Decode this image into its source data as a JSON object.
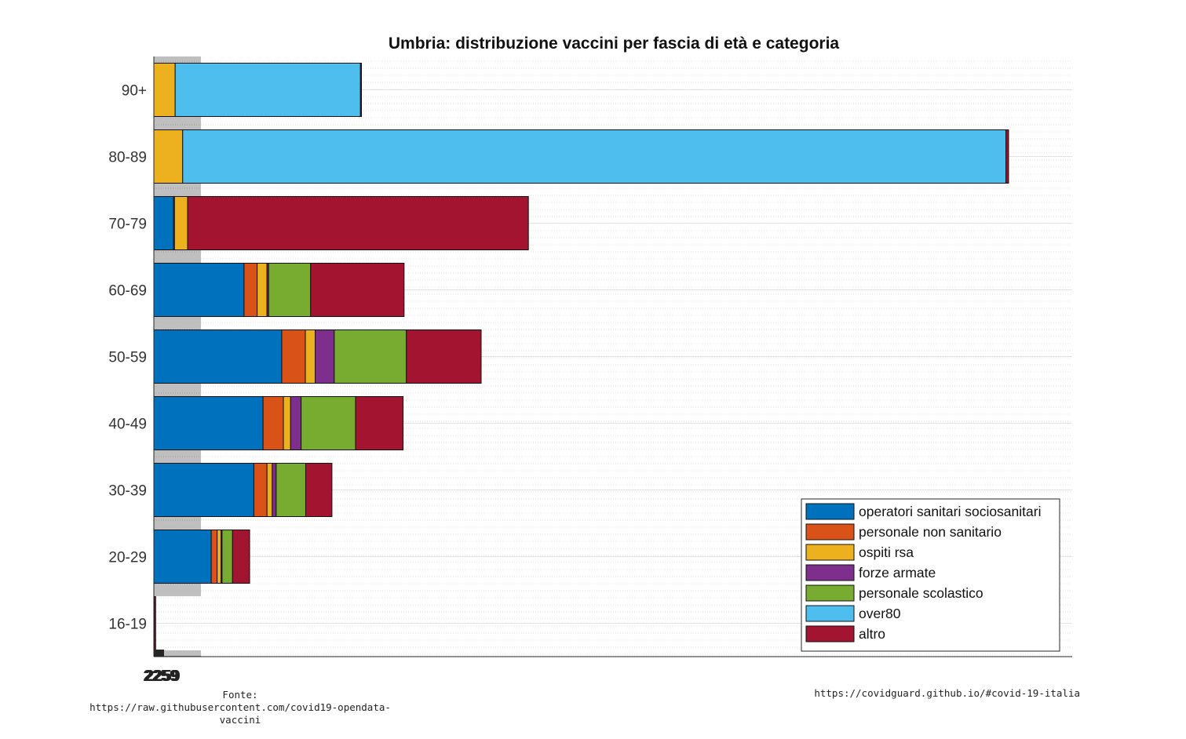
{
  "chart_data": {
    "type": "bar",
    "orientation": "horizontal",
    "stacked": true,
    "title": "Umbria: distribuzione vaccini per fascia di età e categoria",
    "categories": [
      "90+",
      "80-89",
      "70-79",
      "60-69",
      "50-59",
      "40-49",
      "30-39",
      "20-29",
      "16-19"
    ],
    "series": [
      {
        "name": "operatori sanitari sociosanitari",
        "color": "#0072BD",
        "values": [
          0,
          0,
          600,
          2750,
          3900,
          3330,
          3050,
          1750,
          10
        ]
      },
      {
        "name": "personale non sanitario",
        "color": "#D95319",
        "values": [
          0,
          0,
          30,
          400,
          720,
          620,
          400,
          180,
          5
        ]
      },
      {
        "name": "ospiti rsa",
        "color": "#EDB120",
        "values": [
          650,
          880,
          400,
          300,
          300,
          220,
          160,
          120,
          0
        ]
      },
      {
        "name": "forze armate",
        "color": "#7E2F8E",
        "values": [
          0,
          0,
          0,
          50,
          580,
          320,
          120,
          30,
          0
        ]
      },
      {
        "name": "personale scolastico",
        "color": "#77AC30",
        "values": [
          0,
          0,
          0,
          1280,
          2200,
          1660,
          900,
          320,
          0
        ]
      },
      {
        "name": "over80",
        "color": "#4DBEEE",
        "values": [
          5650,
          25100,
          0,
          0,
          0,
          0,
          0,
          0,
          0
        ]
      },
      {
        "name": "altro",
        "color": "#A2142F",
        "values": [
          30,
          80,
          10390,
          2850,
          2280,
          1450,
          800,
          520,
          40
        ]
      }
    ],
    "xlim": [
      0,
      28000
    ],
    "x_tick_labels_text": "",
    "x_tick_glyph": "2259",
    "grid": "y-minor dotted",
    "legend_placement": "bottom-right"
  },
  "footer": {
    "source_label": "Fonte:",
    "source_url": "https://raw.githubusercontent.com/covid19-opendata-vaccini",
    "site_url": "https://covidguard.github.io/#covid-19-italia"
  }
}
